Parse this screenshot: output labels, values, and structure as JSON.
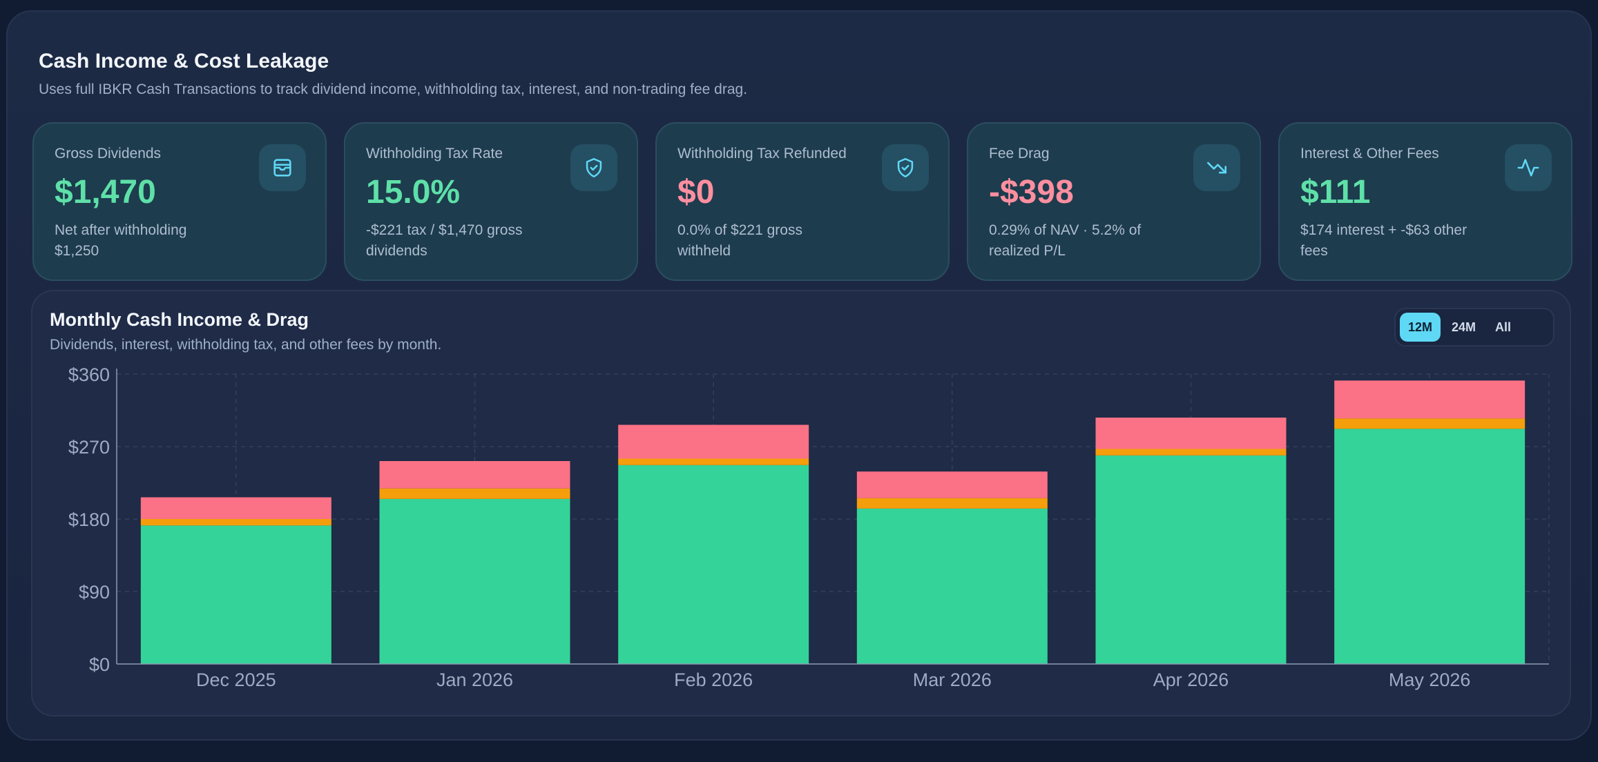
{
  "header": {
    "title": "Cash Income & Cost Leakage",
    "subtitle": "Uses full IBKR Cash Transactions to track dividend income, withholding tax, interest, and non-trading fee drag."
  },
  "cards": [
    {
      "label": "Gross Dividends",
      "value": "$1,470",
      "note": "Net after withholding $1,250",
      "icon": "wallet-icon",
      "value_color": "#5ee0a8"
    },
    {
      "label": "Withholding Tax Rate",
      "value": "15.0%",
      "note": "-$221 tax / $1,470 gross dividends",
      "icon": "shield-check-icon",
      "value_color": "#5ee0a8"
    },
    {
      "label": "Withholding Tax Refunded",
      "value": "$0",
      "note": "0.0% of $221 gross withheld",
      "icon": "shield-check-icon",
      "value_color": "#ff8fa0"
    },
    {
      "label": "Fee Drag",
      "value": "-$398",
      "note": "0.29% of NAV · 5.2% of realized P/L",
      "icon": "trending-down-icon",
      "value_color": "#ff8fa0"
    },
    {
      "label": "Interest & Other Fees",
      "value": "$111",
      "note": "$174 interest + -$63 other fees",
      "icon": "activity-icon",
      "value_color": "#5ee0a8"
    }
  ],
  "chart_panel": {
    "title": "Monthly Cash Income & Drag",
    "subtitle": "Dividends, interest, withholding tax, and other fees by month.",
    "range_options": [
      "12M",
      "24M",
      "All"
    ],
    "range_selected": "12M"
  },
  "chart_data": {
    "type": "bar",
    "stacked": true,
    "categories": [
      "Dec 2025",
      "Jan 2026",
      "Feb 2026",
      "Mar 2026",
      "Apr 2026",
      "May 2026"
    ],
    "series": [
      {
        "color": "#34d399",
        "values": [
          172,
          205,
          247,
          193,
          259,
          292
        ]
      },
      {
        "color": "#f59e0b",
        "values": [
          8,
          13,
          8,
          13,
          8,
          13
        ]
      },
      {
        "color": "#fb7185",
        "values": [
          27,
          34,
          42,
          33,
          39,
          47
        ]
      }
    ],
    "y_ticks": [
      "$0",
      "$90",
      "$180",
      "$270",
      "$360"
    ],
    "ylim": [
      0,
      360
    ],
    "grid": true,
    "colors": {
      "grid": "#34415c",
      "axis": "#8e9bb3",
      "tick_text": "#9eabc2"
    }
  }
}
